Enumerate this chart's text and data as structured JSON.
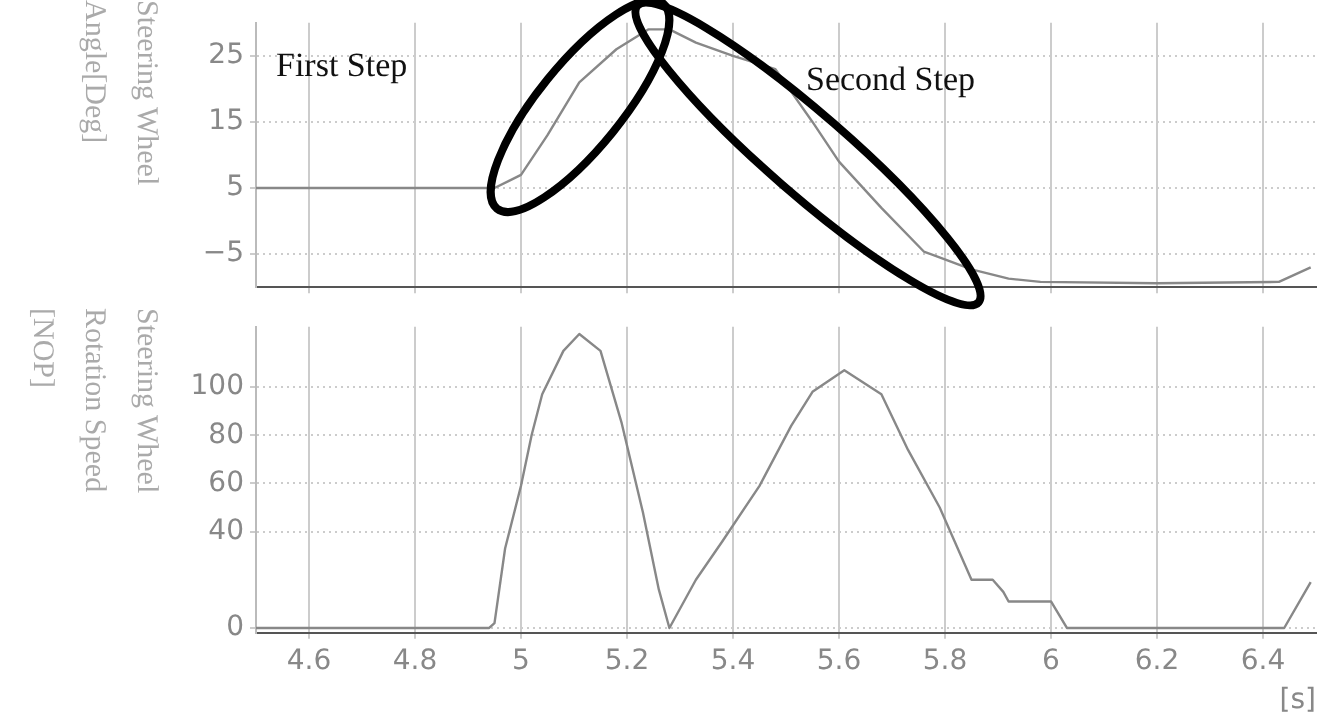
{
  "chart_data": [
    {
      "type": "line",
      "ylabel": "Steering Wheel Angle[Deg]",
      "color": "#888888",
      "marker": "none",
      "grid": true,
      "tick_labels": "y",
      "x": [
        4.5,
        4.95,
        5.0,
        5.05,
        5.11,
        5.18,
        5.24,
        5.28,
        5.33,
        5.4,
        5.48,
        5.55,
        5.6,
        5.68,
        5.76,
        5.85,
        5.92,
        5.98,
        6.2,
        6.43,
        6.49
      ],
      "values": [
        5,
        5,
        7,
        13,
        21,
        26,
        29,
        29,
        27,
        25,
        23,
        15,
        9,
        2,
        -4.6,
        -7.3,
        -8.7,
        -9.2,
        -9.4,
        -9.2,
        -7
      ],
      "xlim": [
        4.5,
        6.5
      ],
      "xticks": [
        4.6,
        4.8,
        5,
        5.2,
        5.4,
        5.6,
        5.8,
        6,
        6.2,
        6.4
      ],
      "ylim": [
        -10,
        30
      ],
      "yticks": [
        {
          "value": -5,
          "label": "−5"
        },
        5,
        15,
        25
      ],
      "annotations": [
        "First Step",
        "Second Step"
      ]
    },
    {
      "type": "line",
      "ylabel": "Steering Wheel Rotation Speed [NOP]",
      "xlabel": "[s]",
      "color": "#888888",
      "marker": "none",
      "grid": true,
      "x": [
        4.5,
        4.94,
        4.95,
        4.97,
        5.0,
        5.02,
        5.04,
        5.08,
        5.11,
        5.15,
        5.19,
        5.23,
        5.26,
        5.28,
        5.33,
        5.38,
        5.45,
        5.51,
        5.55,
        5.61,
        5.68,
        5.73,
        5.79,
        5.85,
        5.89,
        5.91,
        5.92,
        6.0,
        6.03,
        6.44,
        6.49
      ],
      "values": [
        0,
        0,
        2,
        33,
        59,
        80,
        97,
        115,
        122,
        115,
        85,
        48,
        16,
        0,
        20,
        36,
        59,
        84,
        98,
        107,
        97,
        74,
        50,
        20,
        20,
        15,
        11,
        11,
        0,
        0,
        19
      ],
      "xlim": [
        4.5,
        6.5
      ],
      "xticks": [
        4.6,
        4.8,
        5,
        5.2,
        5.4,
        5.6,
        5.8,
        6,
        6.2,
        6.4
      ],
      "ylim": [
        -2,
        125
      ],
      "yticks": [
        0,
        40,
        60,
        80,
        100
      ]
    }
  ]
}
